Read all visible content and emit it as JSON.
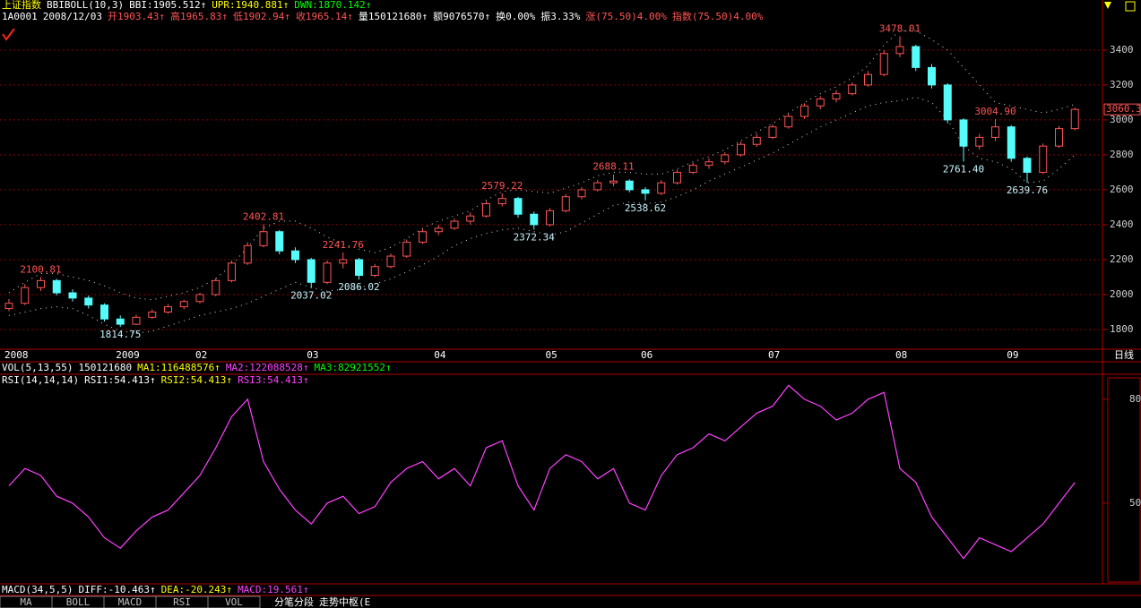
{
  "header": {
    "title": "上证指数",
    "indicator": "BBIBOLL(10,3)",
    "items": [
      "BBI:1905.512↑",
      "UPR:1940.881↑",
      "DWN:1870.142↑"
    ]
  },
  "info": [
    "1A0001",
    "2008/12/03",
    "开1903.43↑",
    "高1965.83↑",
    "低1902.94↑",
    "收1965.14↑",
    "量150121680↑",
    "额9076570↑",
    "换0.00%",
    "振3.33%",
    "涨(75.50)4.00%",
    "指数(75.50)4.00%"
  ],
  "vol": {
    "title": "VOL(5,13,55)",
    "items": [
      "150121680",
      "MA1:116488576↑",
      "MA2:122088528↑",
      "MA3:82921552↑"
    ]
  },
  "macd": {
    "title": "MACD(34,5,5)",
    "items": [
      "DIFF:-10.463↑",
      "DEA:-20.243↑",
      "MACD:19.561↑"
    ]
  },
  "tabs": [
    "MA",
    "BOLL",
    "MACD",
    "RSI",
    "VOL"
  ],
  "tools": [
    "分笔分段",
    "走势中枢(E"
  ],
  "period": "日线",
  "chart_data": [
    {
      "type": "candlestick",
      "categories": [
        "2008",
        null,
        null,
        null,
        null,
        null,
        null,
        "2009",
        null,
        null,
        null,
        null,
        "02",
        null,
        null,
        null,
        null,
        null,
        null,
        "03",
        null,
        null,
        null,
        null,
        null,
        null,
        null,
        "04",
        null,
        null,
        null,
        null,
        null,
        null,
        "05",
        null,
        null,
        null,
        null,
        null,
        "06",
        null,
        null,
        null,
        null,
        null,
        null,
        null,
        "07",
        null,
        null,
        null,
        null,
        null,
        null,
        null,
        "08",
        null,
        null,
        null,
        null,
        null,
        null,
        "09",
        null,
        null,
        null,
        null
      ],
      "ohlc": [
        [
          1920,
          1975,
          1905,
          1950
        ],
        [
          1950,
          2060,
          1940,
          2040
        ],
        [
          2040,
          2100.81,
          2020,
          2080
        ],
        [
          2080,
          2090,
          1995,
          2010
        ],
        [
          2010,
          2030,
          1960,
          1980
        ],
        [
          1980,
          1995,
          1920,
          1940
        ],
        [
          1940,
          1950,
          1845,
          1860
        ],
        [
          1860,
          1880,
          1814.75,
          1830
        ],
        [
          1830,
          1885,
          1825,
          1870
        ],
        [
          1870,
          1915,
          1860,
          1900
        ],
        [
          1900,
          1945,
          1890,
          1930
        ],
        [
          1930,
          1970,
          1915,
          1960
        ],
        [
          1960,
          2010,
          1950,
          2000
        ],
        [
          2000,
          2095,
          1990,
          2080
        ],
        [
          2080,
          2195,
          2070,
          2180
        ],
        [
          2180,
          2300,
          2170,
          2280
        ],
        [
          2280,
          2402.81,
          2270,
          2360
        ],
        [
          2360,
          2370,
          2230,
          2250
        ],
        [
          2250,
          2270,
          2180,
          2200
        ],
        [
          2200,
          2210,
          2037.02,
          2070
        ],
        [
          2070,
          2195,
          2060,
          2180
        ],
        [
          2180,
          2241.76,
          2150,
          2200
        ],
        [
          2200,
          2210,
          2086.02,
          2110
        ],
        [
          2110,
          2175,
          2100,
          2160
        ],
        [
          2160,
          2235,
          2150,
          2220
        ],
        [
          2220,
          2315,
          2210,
          2300
        ],
        [
          2300,
          2375,
          2290,
          2360
        ],
        [
          2360,
          2400,
          2340,
          2380
        ],
        [
          2380,
          2435,
          2370,
          2420
        ],
        [
          2420,
          2470,
          2400,
          2450
        ],
        [
          2450,
          2535,
          2440,
          2520
        ],
        [
          2520,
          2579.22,
          2505,
          2550
        ],
        [
          2550,
          2560,
          2440,
          2460
        ],
        [
          2460,
          2475,
          2372.34,
          2400
        ],
        [
          2400,
          2495,
          2390,
          2480
        ],
        [
          2480,
          2575,
          2470,
          2560
        ],
        [
          2560,
          2615,
          2545,
          2600
        ],
        [
          2600,
          2655,
          2590,
          2640
        ],
        [
          2640,
          2688.11,
          2620,
          2650
        ],
        [
          2650,
          2660,
          2585,
          2600
        ],
        [
          2600,
          2615,
          2538.62,
          2580
        ],
        [
          2580,
          2655,
          2570,
          2640
        ],
        [
          2640,
          2715,
          2630,
          2700
        ],
        [
          2700,
          2755,
          2690,
          2740
        ],
        [
          2740,
          2780,
          2720,
          2760
        ],
        [
          2760,
          2815,
          2745,
          2800
        ],
        [
          2800,
          2875,
          2790,
          2860
        ],
        [
          2860,
          2920,
          2845,
          2900
        ],
        [
          2900,
          2975,
          2890,
          2960
        ],
        [
          2960,
          3035,
          2950,
          3020
        ],
        [
          3020,
          3095,
          3005,
          3080
        ],
        [
          3080,
          3135,
          3060,
          3120
        ],
        [
          3120,
          3170,
          3100,
          3150
        ],
        [
          3150,
          3215,
          3140,
          3200
        ],
        [
          3200,
          3280,
          3190,
          3260
        ],
        [
          3260,
          3400,
          3250,
          3380
        ],
        [
          3380,
          3478.01,
          3360,
          3420
        ],
        [
          3420,
          3430,
          3280,
          3300
        ],
        [
          3300,
          3320,
          3180,
          3200
        ],
        [
          3200,
          3210,
          2980,
          3000
        ],
        [
          3000,
          3010,
          2761.4,
          2850
        ],
        [
          2850,
          2920,
          2830,
          2900
        ],
        [
          2900,
          3004.9,
          2880,
          2960
        ],
        [
          2960,
          2970,
          2760,
          2780
        ],
        [
          2780,
          2790,
          2639.76,
          2700
        ],
        [
          2700,
          2865,
          2690,
          2850
        ],
        [
          2850,
          2965,
          2840,
          2950
        ],
        [
          2950,
          3070,
          2940,
          3060.3
        ]
      ],
      "high_labels": [
        null,
        null,
        "2100.81",
        null,
        null,
        null,
        null,
        null,
        null,
        null,
        null,
        null,
        null,
        null,
        null,
        null,
        "2402.81",
        null,
        null,
        null,
        null,
        "2241.76",
        null,
        null,
        null,
        null,
        null,
        null,
        null,
        null,
        null,
        "2579.22",
        null,
        null,
        null,
        null,
        null,
        null,
        "2688.11",
        null,
        null,
        null,
        null,
        null,
        null,
        null,
        null,
        null,
        null,
        null,
        null,
        null,
        null,
        null,
        null,
        null,
        "3478.01",
        null,
        null,
        null,
        null,
        null,
        "3004.90",
        null,
        null,
        null,
        null,
        null
      ],
      "low_labels": [
        null,
        null,
        null,
        null,
        null,
        null,
        null,
        "1814.75",
        null,
        null,
        null,
        null,
        null,
        null,
        null,
        null,
        null,
        null,
        null,
        "2037.02",
        null,
        null,
        "2086.02",
        null,
        null,
        null,
        null,
        null,
        null,
        null,
        null,
        null,
        null,
        "2372.34",
        null,
        null,
        null,
        null,
        null,
        null,
        "2538.62",
        null,
        null,
        null,
        null,
        null,
        null,
        null,
        null,
        null,
        null,
        null,
        null,
        null,
        null,
        null,
        null,
        null,
        null,
        null,
        "2761.40",
        null,
        null,
        null,
        "2639.76",
        null,
        null,
        null
      ],
      "upper": [
        2010,
        2070,
        2120,
        2120,
        2100,
        2080,
        2050,
        2010,
        1980,
        1970,
        1990,
        2010,
        2040,
        2090,
        2170,
        2270,
        2380,
        2420,
        2420,
        2380,
        2330,
        2290,
        2260,
        2240,
        2270,
        2320,
        2380,
        2420,
        2450,
        2480,
        2540,
        2590,
        2600,
        2590,
        2580,
        2610,
        2640,
        2680,
        2700,
        2700,
        2690,
        2690,
        2720,
        2760,
        2790,
        2830,
        2880,
        2930,
        2980,
        3040,
        3100,
        3150,
        3190,
        3240,
        3310,
        3430,
        3510,
        3510,
        3460,
        3400,
        3300,
        3200,
        3100,
        3080,
        3060,
        3040,
        3060,
        3090
      ],
      "lower": [
        1880,
        1900,
        1920,
        1930,
        1920,
        1880,
        1830,
        1790,
        1780,
        1790,
        1820,
        1850,
        1880,
        1900,
        1920,
        1950,
        1990,
        2030,
        2070,
        2040,
        2020,
        2030,
        2040,
        2060,
        2090,
        2130,
        2170,
        2220,
        2280,
        2320,
        2350,
        2370,
        2380,
        2360,
        2340,
        2360,
        2410,
        2460,
        2510,
        2530,
        2520,
        2530,
        2560,
        2600,
        2650,
        2690,
        2730,
        2770,
        2810,
        2860,
        2910,
        2960,
        3000,
        3040,
        3080,
        3100,
        3110,
        3130,
        3100,
        3000,
        2850,
        2780,
        2760,
        2720,
        2640,
        2650,
        2720,
        2800
      ],
      "last_label": "3060.3",
      "up_color": "#ff5454",
      "down_color": "#54fcfc",
      "band_color": "#d8d8d8",
      "ylim": [
        1687,
        3543
      ],
      "yticks": [
        1800,
        2000,
        2200,
        2400,
        2600,
        2800,
        3000,
        3200,
        3400
      ],
      "grid": true
    },
    {
      "type": "line",
      "title": "RSI(14,14,14)",
      "items": [
        "RSI1:54.413↑",
        "RSI2:54.413↑",
        "RSI3:54.413↑"
      ],
      "values": [
        55,
        60,
        58,
        52,
        50,
        46,
        40,
        37,
        42,
        46,
        48,
        53,
        58,
        66,
        75,
        80,
        62,
        54,
        48,
        44,
        50,
        52,
        47,
        49,
        56,
        60,
        62,
        57,
        60,
        55,
        66,
        68,
        55,
        48,
        60,
        64,
        62,
        57,
        60,
        50,
        48,
        58,
        64,
        66,
        70,
        68,
        72,
        76,
        78,
        84,
        80,
        78,
        74,
        76,
        80,
        82,
        60,
        56,
        46,
        40,
        34,
        40,
        38,
        36,
        40,
        44,
        50,
        56
      ],
      "color": "#ff40ff",
      "ylim": [
        26.7,
        86.7
      ],
      "yticks": [
        50,
        80
      ]
    }
  ]
}
